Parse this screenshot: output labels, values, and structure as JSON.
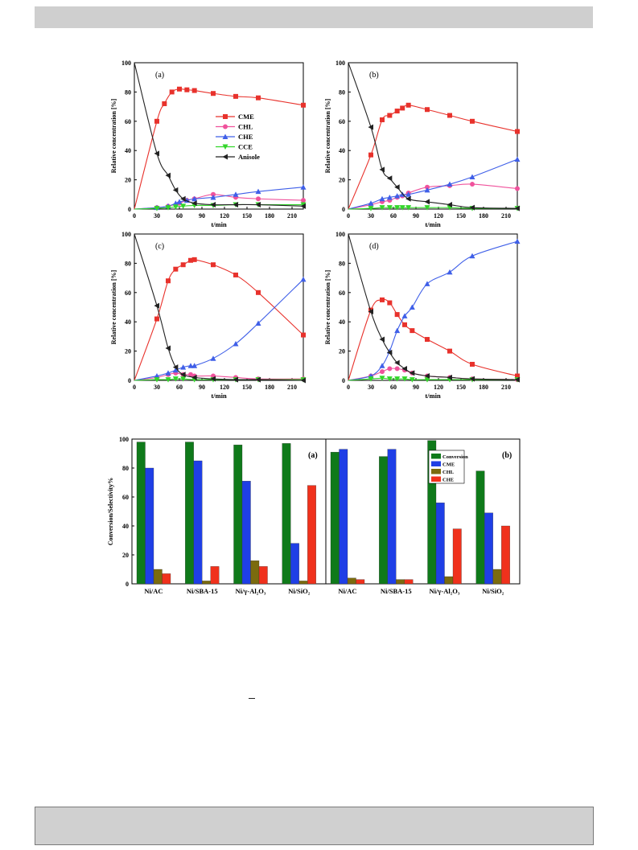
{
  "chart_data": [
    {
      "type": "line",
      "panel_label": "(a)",
      "xlabel": "t/min",
      "ylabel": "Relative concentration [%]",
      "xlim": [
        0,
        225
      ],
      "ylim": [
        0,
        100
      ],
      "xticks": [
        0,
        30,
        60,
        90,
        120,
        150,
        180,
        210
      ],
      "yticks": [
        0,
        20,
        40,
        60,
        80,
        100
      ],
      "legend_position": "center",
      "series": [
        {
          "name": "CME",
          "color": "#e8322c",
          "marker": "square",
          "x": [
            0,
            30,
            40,
            50,
            60,
            70,
            80,
            105,
            135,
            165,
            225
          ],
          "y": [
            0,
            60,
            72,
            80,
            82,
            81.5,
            81,
            79,
            77,
            76,
            71
          ]
        },
        {
          "name": "CHL",
          "color": "#f0529c",
          "marker": "circle",
          "x": [
            0,
            30,
            45,
            60,
            70,
            80,
            105,
            135,
            165,
            225
          ],
          "y": [
            0,
            1,
            2,
            4,
            6,
            7,
            10,
            8,
            7,
            6
          ]
        },
        {
          "name": "CHE",
          "color": "#3f5fe8",
          "marker": "triangle-up",
          "x": [
            0,
            30,
            45,
            55,
            60,
            70,
            80,
            105,
            135,
            165,
            225
          ],
          "y": [
            0,
            1,
            2,
            4,
            5,
            6,
            7,
            8,
            10,
            12,
            15
          ]
        },
        {
          "name": "CCE",
          "color": "#33d62a",
          "marker": "triangle-down",
          "x": [
            0,
            30,
            45,
            55,
            65,
            80,
            105,
            135,
            165,
            225
          ],
          "y": [
            0,
            0.5,
            1,
            1.5,
            2,
            2.5,
            2.5,
            3,
            3,
            3
          ]
        },
        {
          "name": "Anisole",
          "color": "#222222",
          "marker": "triangle-left",
          "x": [
            0,
            30,
            45,
            55,
            65,
            80,
            105,
            135,
            165,
            225
          ],
          "y": [
            100,
            38,
            23,
            13,
            7,
            4,
            3,
            3,
            3,
            2
          ]
        }
      ]
    },
    {
      "type": "line",
      "panel_label": "(b)",
      "xlabel": "t/min",
      "ylabel": "Relative concentration [%]",
      "xlim": [
        0,
        225
      ],
      "ylim": [
        0,
        100
      ],
      "xticks": [
        0,
        30,
        60,
        90,
        120,
        150,
        180,
        210
      ],
      "yticks": [
        0,
        20,
        40,
        60,
        80,
        100
      ],
      "series": [
        {
          "name": "CME",
          "color": "#e8322c",
          "marker": "square",
          "x": [
            0,
            30,
            45,
            55,
            65,
            72,
            80,
            105,
            135,
            165,
            225
          ],
          "y": [
            0,
            37,
            61,
            64,
            67,
            69,
            71,
            68,
            64,
            60,
            53
          ]
        },
        {
          "name": "CHL",
          "color": "#f0529c",
          "marker": "circle",
          "x": [
            0,
            30,
            45,
            55,
            65,
            72,
            80,
            105,
            135,
            165,
            225
          ],
          "y": [
            0,
            3,
            5,
            6,
            8,
            9,
            11,
            15,
            16,
            17,
            14
          ]
        },
        {
          "name": "CHE",
          "color": "#3f5fe8",
          "marker": "triangle-up",
          "x": [
            0,
            30,
            45,
            55,
            65,
            72,
            80,
            105,
            135,
            165,
            225
          ],
          "y": [
            0,
            4,
            7,
            8,
            9,
            10,
            10,
            13,
            17,
            22,
            34
          ]
        },
        {
          "name": "CCE",
          "color": "#33d62a",
          "marker": "triangle-down",
          "x": [
            0,
            30,
            45,
            55,
            65,
            72,
            80,
            105,
            135,
            165,
            225
          ],
          "y": [
            0,
            0.5,
            1,
            1,
            1,
            1,
            1,
            1,
            1,
            0.5,
            0.5
          ]
        },
        {
          "name": "Anisole",
          "color": "#222222",
          "marker": "triangle-left",
          "x": [
            0,
            30,
            45,
            55,
            65,
            80,
            105,
            135,
            165,
            225
          ],
          "y": [
            100,
            56,
            27,
            21,
            15,
            7,
            5,
            3,
            1,
            0.5
          ]
        }
      ]
    },
    {
      "type": "line",
      "panel_label": "(c)",
      "xlabel": "t/min",
      "ylabel": "Relative concentration [%]",
      "xlim": [
        0,
        225
      ],
      "ylim": [
        0,
        100
      ],
      "xticks": [
        0,
        30,
        60,
        90,
        120,
        150,
        180,
        210
      ],
      "yticks": [
        0,
        20,
        40,
        60,
        80,
        100
      ],
      "series": [
        {
          "name": "CME",
          "color": "#e8322c",
          "marker": "square",
          "x": [
            0,
            30,
            45,
            55,
            65,
            75,
            80,
            105,
            135,
            165,
            225
          ],
          "y": [
            0,
            42,
            68,
            76,
            79,
            82,
            82.5,
            79,
            72,
            60,
            31
          ]
        },
        {
          "name": "CHL",
          "color": "#f0529c",
          "marker": "circle",
          "x": [
            0,
            30,
            45,
            55,
            65,
            75,
            80,
            105,
            135,
            165,
            225
          ],
          "y": [
            0,
            2,
            4,
            5,
            4,
            4,
            3,
            3,
            2,
            1,
            1
          ]
        },
        {
          "name": "CHE",
          "color": "#3f5fe8",
          "marker": "triangle-up",
          "x": [
            0,
            30,
            45,
            55,
            65,
            75,
            80,
            105,
            135,
            165,
            225
          ],
          "y": [
            0,
            3,
            5,
            7,
            9,
            10,
            10,
            15,
            25,
            39,
            69
          ]
        },
        {
          "name": "CCE",
          "color": "#33d62a",
          "marker": "triangle-down",
          "x": [
            0,
            30,
            45,
            55,
            65,
            80,
            105,
            135,
            165,
            225
          ],
          "y": [
            0,
            0.5,
            0.5,
            1,
            1,
            0.5,
            0.5,
            0.5,
            0.5,
            0.5
          ]
        },
        {
          "name": "Anisole",
          "color": "#222222",
          "marker": "triangle-left",
          "x": [
            0,
            30,
            45,
            55,
            65,
            80,
            105,
            135,
            165,
            225
          ],
          "y": [
            100,
            51,
            22,
            9,
            4,
            2,
            1,
            0.5,
            0.5,
            0
          ]
        }
      ]
    },
    {
      "type": "line",
      "panel_label": "(d)",
      "xlabel": "t/min",
      "ylabel": "Relative concentration [%]",
      "xlim": [
        0,
        225
      ],
      "ylim": [
        0,
        100
      ],
      "xticks": [
        0,
        30,
        60,
        90,
        120,
        150,
        180,
        210
      ],
      "yticks": [
        0,
        20,
        40,
        60,
        80,
        100
      ],
      "series": [
        {
          "name": "CME",
          "color": "#e8322c",
          "marker": "square",
          "x": [
            0,
            30,
            45,
            55,
            65,
            75,
            85,
            105,
            135,
            165,
            225
          ],
          "y": [
            0,
            48,
            55,
            53,
            45,
            38,
            34,
            28,
            20,
            11,
            3
          ]
        },
        {
          "name": "CHL",
          "color": "#f0529c",
          "marker": "circle",
          "x": [
            0,
            30,
            45,
            55,
            65,
            75,
            85,
            105,
            135,
            165,
            225
          ],
          "y": [
            0,
            3,
            6,
            8,
            8,
            7,
            5,
            3,
            2,
            1,
            0.5
          ]
        },
        {
          "name": "CHE",
          "color": "#3f5fe8",
          "marker": "triangle-up",
          "x": [
            0,
            30,
            45,
            55,
            65,
            75,
            85,
            105,
            135,
            165,
            225
          ],
          "y": [
            0,
            3,
            10,
            20,
            34,
            44,
            50,
            66,
            74,
            85,
            95
          ]
        },
        {
          "name": "CCE",
          "color": "#33d62a",
          "marker": "triangle-down",
          "x": [
            0,
            30,
            45,
            55,
            65,
            75,
            85,
            105,
            135,
            165,
            225
          ],
          "y": [
            0,
            1,
            1.5,
            1,
            1,
            1,
            0.5,
            0.5,
            0.5,
            0.5,
            0.5
          ]
        },
        {
          "name": "Anisole",
          "color": "#222222",
          "marker": "triangle-left",
          "x": [
            0,
            30,
            45,
            55,
            65,
            75,
            85,
            105,
            135,
            165,
            225
          ],
          "y": [
            100,
            47,
            28,
            19,
            12,
            8,
            5,
            3,
            2,
            1,
            0.5
          ]
        }
      ]
    },
    {
      "type": "bar",
      "ylabel": "Conversion/Selectivity%",
      "ylim": [
        0,
        100
      ],
      "yticks": [
        0,
        20,
        40,
        60,
        80,
        100
      ],
      "legend_position": "top-right",
      "legend_labels": [
        "Conversion",
        "CME",
        "CHL",
        "CHE"
      ],
      "series_colors": [
        "#0f7a1a",
        "#1f3fe6",
        "#7b6b0e",
        "#f0311c"
      ],
      "panels": [
        {
          "label": "(a)",
          "categories": [
            "Ni/AC",
            "Ni/SBA-15",
            "Ni/γ-Al₂O₃",
            "Ni/SiO₂"
          ],
          "series": [
            {
              "name": "Conversion",
              "values": [
                98,
                98,
                96,
                97
              ]
            },
            {
              "name": "CME",
              "values": [
                80,
                85,
                71,
                28
              ]
            },
            {
              "name": "CHL",
              "values": [
                10,
                2,
                16,
                2
              ]
            },
            {
              "name": "CHE",
              "values": [
                7,
                12,
                12,
                68
              ]
            }
          ]
        },
        {
          "label": "(b)",
          "categories": [
            "Ni/AC",
            "Ni/SBA-15",
            "Ni/γ-Al₂O₃",
            "Ni/SiO₂"
          ],
          "series": [
            {
              "name": "Conversion",
              "values": [
                91,
                88,
                99,
                78
              ]
            },
            {
              "name": "CME",
              "values": [
                93,
                93,
                56,
                49
              ]
            },
            {
              "name": "CHL",
              "values": [
                4,
                3,
                5,
                10
              ]
            },
            {
              "name": "CHE",
              "values": [
                3,
                3,
                38,
                40
              ]
            }
          ]
        }
      ]
    }
  ]
}
